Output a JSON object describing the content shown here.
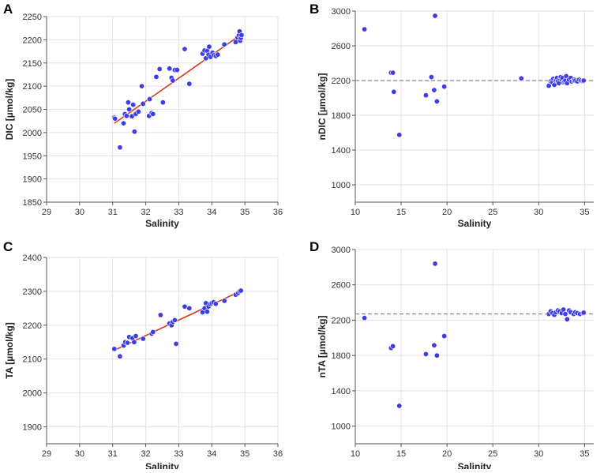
{
  "chart_data": [
    {
      "panel": "A",
      "type": "scatter",
      "xlabel": "Salinity",
      "ylabel": "DIC [µmol/kg]",
      "xlim": [
        29,
        36
      ],
      "ylim": [
        1850,
        2250
      ],
      "xticks": [
        29,
        30,
        31,
        32,
        33,
        34,
        35,
        36
      ],
      "yticks": [
        1850,
        1900,
        1950,
        2000,
        2050,
        2100,
        2150,
        2200,
        2250
      ],
      "grid": true,
      "point_color": "#3d3de6",
      "series": [
        {
          "name": "samples",
          "x": [
            31.05,
            31.07,
            31.22,
            31.33,
            31.37,
            31.42,
            31.47,
            31.5,
            31.58,
            31.62,
            31.66,
            31.7,
            31.78,
            31.88,
            31.92,
            32.1,
            32.12,
            32.18,
            32.22,
            32.32,
            32.42,
            32.52,
            32.72,
            32.78,
            32.82,
            32.88,
            32.95,
            33.18,
            33.32,
            33.72,
            33.78,
            33.82,
            33.86,
            33.9,
            33.92,
            33.96,
            34.02,
            34.06,
            34.12,
            34.18,
            34.38,
            34.72,
            34.78,
            34.82,
            34.84,
            34.86,
            34.88,
            34.9
          ],
          "y": [
            2032,
            2030,
            1968,
            2020,
            2040,
            2036,
            2065,
            2050,
            2035,
            2060,
            2002,
            2040,
            2045,
            2100,
            2062,
            2036,
            2072,
            2042,
            2040,
            2120,
            2137,
            2065,
            2138,
            2118,
            2112,
            2135,
            2135,
            2180,
            2105,
            2170,
            2177,
            2160,
            2176,
            2168,
            2185,
            2163,
            2172,
            2167,
            2165,
            2168,
            2190,
            2195,
            2205,
            2210,
            2218,
            2198,
            2204,
            2210
          ]
        }
      ],
      "fit": {
        "color": "#d23c1c",
        "x": [
          31.05,
          34.9
        ],
        "y": [
          2020,
          2212
        ]
      }
    },
    {
      "panel": "B",
      "type": "scatter",
      "xlabel": "Salinity",
      "ylabel": "nDIC [µmol/kg]",
      "xlim": [
        10,
        36
      ],
      "ylim": [
        800,
        3000
      ],
      "xticks": [
        10,
        15,
        20,
        25,
        30,
        35
      ],
      "yticks": [
        1000,
        1400,
        1800,
        2200,
        2600,
        3000
      ],
      "grid": true,
      "point_color": "#3d3de6",
      "series": [
        {
          "name": "samples",
          "x": [
            11.0,
            13.9,
            14.1,
            14.2,
            14.8,
            17.7,
            18.3,
            18.6,
            18.7,
            18.9,
            19.7,
            28.1,
            31.1,
            31.3,
            31.4,
            31.5,
            31.6,
            31.7,
            31.8,
            31.9,
            32.0,
            32.1,
            32.2,
            32.3,
            32.4,
            32.5,
            32.6,
            32.7,
            32.8,
            32.9,
            33.0,
            33.1,
            33.3,
            33.5,
            33.6,
            33.8,
            33.9,
            34.0,
            34.2,
            34.4,
            34.6,
            34.8,
            34.9
          ],
          "y": [
            2790,
            2290,
            2290,
            2070,
            1575,
            2030,
            2240,
            2090,
            2945,
            1960,
            2130,
            2225,
            2140,
            2190,
            2200,
            2180,
            2220,
            2150,
            2200,
            2210,
            2230,
            2190,
            2170,
            2220,
            2240,
            2210,
            2230,
            2180,
            2190,
            2200,
            2250,
            2170,
            2210,
            2230,
            2190,
            2200,
            2210,
            2200,
            2190,
            2210,
            2200,
            2195,
            2200
          ]
        }
      ],
      "reference_line": {
        "y": 2200,
        "style": "dashed",
        "color": "#888888"
      }
    },
    {
      "panel": "C",
      "type": "scatter",
      "xlabel": "Salinity",
      "ylabel": "TA [µmol/kg]",
      "xlim": [
        29,
        36
      ],
      "ylim": [
        1850,
        2400
      ],
      "xticks": [
        29,
        30,
        31,
        32,
        33,
        34,
        35,
        36
      ],
      "yticks": [
        1900,
        2000,
        2100,
        2200,
        2300,
        2400
      ],
      "grid": true,
      "point_color": "#3d3de6",
      "series": [
        {
          "name": "samples",
          "x": [
            31.05,
            31.22,
            31.33,
            31.38,
            31.45,
            31.5,
            31.6,
            31.65,
            31.7,
            31.92,
            32.18,
            32.22,
            32.45,
            32.72,
            32.78,
            32.82,
            32.88,
            32.92,
            33.18,
            33.32,
            33.72,
            33.78,
            33.82,
            33.86,
            33.9,
            33.95,
            34.0,
            34.05,
            34.12,
            34.38,
            34.72,
            34.8,
            34.84,
            34.88
          ],
          "y": [
            2130,
            2108,
            2140,
            2150,
            2148,
            2165,
            2162,
            2150,
            2168,
            2160,
            2175,
            2180,
            2230,
            2205,
            2200,
            2210,
            2215,
            2145,
            2255,
            2250,
            2238,
            2250,
            2265,
            2240,
            2255,
            2262,
            2265,
            2268,
            2263,
            2272,
            2290,
            2295,
            2300,
            2302
          ]
        }
      ],
      "fit": {
        "color": "#d23c1c",
        "x": [
          31.05,
          34.9
        ],
        "y": [
          2126,
          2302
        ]
      }
    },
    {
      "panel": "D",
      "type": "scatter",
      "xlabel": "Salinity",
      "ylabel": "nTA [µmol/kg]",
      "xlim": [
        10,
        36
      ],
      "ylim": [
        800,
        3000
      ],
      "xticks": [
        10,
        15,
        20,
        25,
        30,
        35
      ],
      "yticks": [
        1000,
        1400,
        1800,
        2200,
        2600,
        3000
      ],
      "grid": true,
      "point_color": "#3d3de6",
      "series": [
        {
          "name": "samples",
          "x": [
            11.0,
            13.9,
            14.1,
            14.8,
            17.7,
            18.6,
            18.7,
            18.9,
            19.7,
            31.1,
            31.3,
            31.5,
            31.7,
            31.9,
            32.1,
            32.3,
            32.5,
            32.7,
            32.9,
            33.1,
            33.3,
            33.5,
            33.8,
            34.0,
            34.2,
            34.5,
            34.8,
            34.9
          ],
          "y": [
            2225,
            1885,
            1905,
            1230,
            1815,
            1915,
            2840,
            1800,
            2020,
            2270,
            2300,
            2280,
            2260,
            2290,
            2310,
            2300,
            2280,
            2320,
            2270,
            2210,
            2310,
            2290,
            2270,
            2290,
            2280,
            2270,
            2280,
            2285
          ]
        }
      ],
      "reference_line": {
        "y": 2270,
        "style": "dashed",
        "color": "#888888"
      }
    }
  ]
}
